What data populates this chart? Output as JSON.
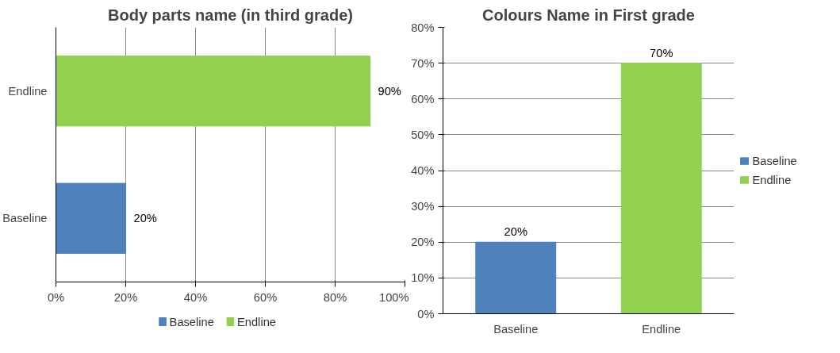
{
  "chart_data": [
    {
      "type": "bar",
      "title": "Body parts name (in third grade)",
      "orientation": "horizontal",
      "categories": [
        "Endline",
        "Baseline"
      ],
      "series": [
        {
          "name": "Baseline",
          "color": "#4f81bd",
          "values": [
            null,
            20
          ],
          "value_labels": [
            null,
            "20%"
          ]
        },
        {
          "name": "Endline",
          "color": "#92d050",
          "values": [
            90,
            null
          ],
          "value_labels": [
            "90%",
            null
          ]
        }
      ],
      "xlim": [
        0,
        100
      ],
      "xticks": [
        {
          "value": 0,
          "label": "0%"
        },
        {
          "value": 20,
          "label": "20%"
        },
        {
          "value": 40,
          "label": "40%"
        },
        {
          "value": 60,
          "label": "60%"
        },
        {
          "value": 80,
          "label": "80%"
        },
        {
          "value": 100,
          "label": "100%"
        }
      ],
      "grid": "x",
      "legend": "bottom"
    },
    {
      "type": "bar",
      "title": "Colours Name in First grade",
      "categories": [
        "Baseline",
        "Endline"
      ],
      "series": [
        {
          "name": "Baseline",
          "color": "#4f81bd",
          "values": [
            20,
            null
          ],
          "value_labels": [
            "20%",
            null
          ]
        },
        {
          "name": "Endline",
          "color": "#92d050",
          "values": [
            null,
            70
          ],
          "value_labels": [
            null,
            "70%"
          ]
        }
      ],
      "ylim": [
        0,
        80
      ],
      "yticks": [
        {
          "value": 0,
          "label": "0%"
        },
        {
          "value": 10,
          "label": "10%"
        },
        {
          "value": 20,
          "label": "20%"
        },
        {
          "value": 30,
          "label": "30%"
        },
        {
          "value": 40,
          "label": "40%"
        },
        {
          "value": 50,
          "label": "50%"
        },
        {
          "value": 60,
          "label": "60%"
        },
        {
          "value": 70,
          "label": "70%"
        },
        {
          "value": 80,
          "label": "80%"
        }
      ],
      "grid": "y",
      "legend": "right"
    }
  ]
}
